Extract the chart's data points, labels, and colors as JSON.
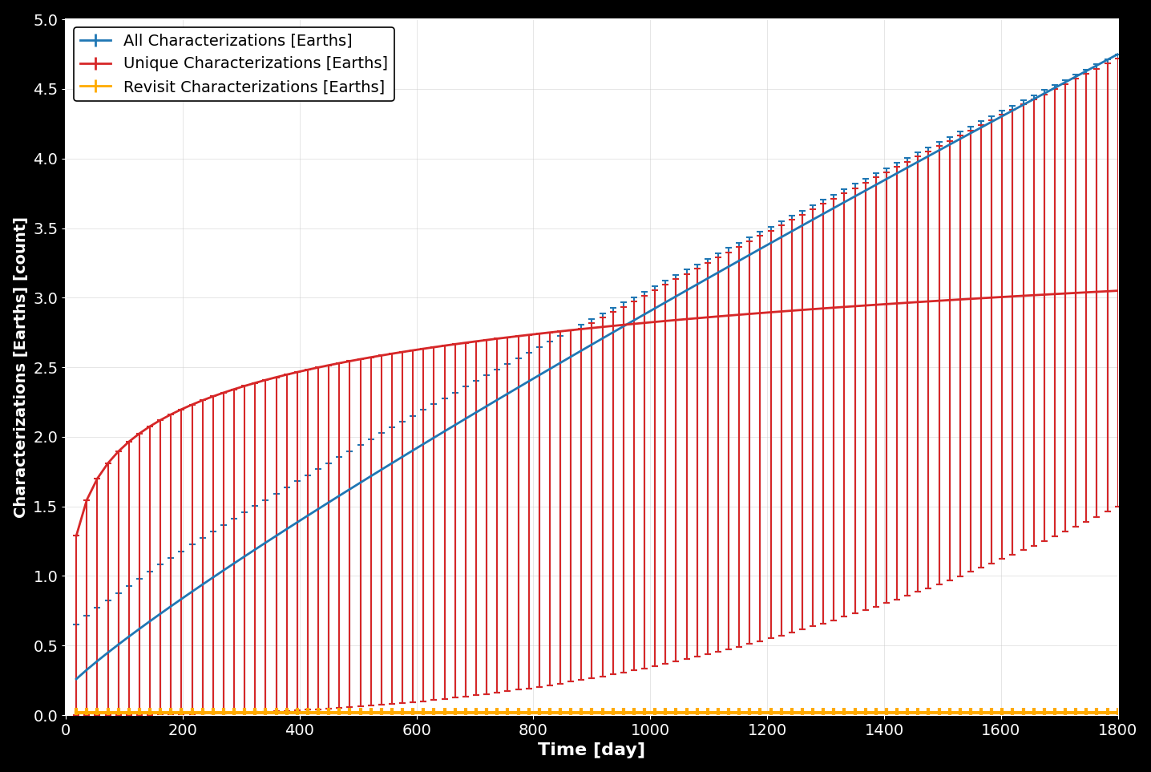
{
  "xlabel": "Time [day]",
  "ylabel": "Characterizations [Earths] [count]",
  "xlim": [
    0,
    1800
  ],
  "ylim": [
    0,
    5
  ],
  "yticks": [
    0,
    0.5,
    1,
    1.5,
    2,
    2.5,
    3,
    3.5,
    4,
    4.5,
    5
  ],
  "xticks": [
    0,
    200,
    400,
    600,
    800,
    1000,
    1200,
    1400,
    1600,
    1800
  ],
  "background_color": "#000000",
  "axes_bg_color": "#ffffff",
  "all_color": "#1f77b4",
  "unique_color": "#d62728",
  "revisit_color": "#ffaa00",
  "n_points": 100,
  "legend_labels": [
    "All Characterizations [Earths]",
    "Unique Characterizations [Earths]",
    "Revisit Characterizations [Earths]"
  ],
  "grid_color": "#cccccc",
  "font_size": 16,
  "legend_font_size": 14
}
